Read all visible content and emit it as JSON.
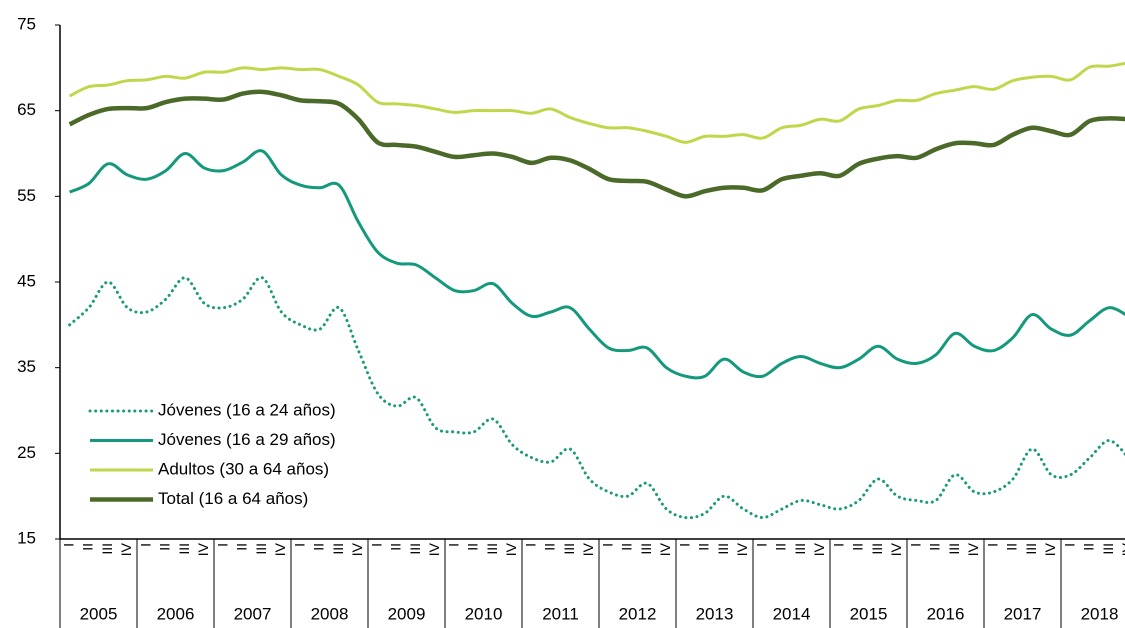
{
  "chart_data": {
    "type": "line",
    "categories": [
      "I",
      "II",
      "III",
      "IV",
      "I",
      "II",
      "III",
      "IV",
      "I",
      "II",
      "III",
      "IV",
      "I",
      "II",
      "III",
      "IV",
      "I",
      "II",
      "III",
      "IV",
      "I",
      "II",
      "III",
      "IV",
      "I",
      "II",
      "III",
      "IV",
      "I",
      "II",
      "III",
      "IV",
      "I",
      "II",
      "III",
      "IV",
      "I",
      "II",
      "III",
      "IV",
      "I",
      "II",
      "III",
      "IV",
      "I",
      "II",
      "III",
      "IV",
      "I",
      "II",
      "III",
      "IV",
      "I",
      "II",
      "III",
      "IV"
    ],
    "years": [
      "2005",
      "2006",
      "2007",
      "2008",
      "2009",
      "2010",
      "2011",
      "2012",
      "2013",
      "2014",
      "2015",
      "2016",
      "2017",
      "2018"
    ],
    "ylim": [
      15,
      75
    ],
    "yticks": [
      15,
      25,
      35,
      45,
      55,
      65,
      75
    ],
    "legend": "lower left",
    "series": [
      {
        "name": "Jóvenes (16 a 24 años)",
        "color": "#1a9a7a",
        "style": "dotted",
        "values": [
          40,
          42,
          45,
          42,
          41.5,
          43,
          45.5,
          42.5,
          42,
          43,
          45.5,
          41.5,
          40,
          39.5,
          42,
          37,
          32,
          30.5,
          31.5,
          28,
          27.5,
          27.5,
          29,
          26,
          24.5,
          24,
          25.5,
          22,
          20.5,
          20,
          21.5,
          18.5,
          17.5,
          18,
          20,
          18.5,
          17.5,
          18.5,
          19.5,
          19,
          18.5,
          19.5,
          22,
          20,
          19.5,
          19.5,
          22.5,
          20.5,
          20.5,
          22,
          25.5,
          22.5,
          22.5,
          24.5,
          26.5,
          24.5
        ]
      },
      {
        "name": "Jóvenes (16 a 29 años)",
        "color": "#14997c",
        "style": "solid",
        "values": [
          55.5,
          56.5,
          58.8,
          57.5,
          57,
          58,
          60,
          58.3,
          58,
          59,
          60.3,
          57.5,
          56.3,
          56,
          56.3,
          52,
          48.5,
          47.2,
          47,
          45.5,
          44,
          44,
          44.8,
          42.5,
          41,
          41.5,
          42,
          39.5,
          37.3,
          37,
          37.3,
          35,
          34,
          34,
          36,
          34.5,
          34,
          35.5,
          36.3,
          35.5,
          35,
          36,
          37.5,
          36,
          35.5,
          36.5,
          39,
          37.5,
          37,
          38.5,
          41.2,
          39.5,
          38.8,
          40.5,
          42,
          41
        ]
      },
      {
        "name": "Adultos (30 a 64 años)",
        "color": "#c2d64c",
        "style": "solid",
        "values": [
          66.7,
          67.8,
          68,
          68.5,
          68.6,
          69,
          68.8,
          69.5,
          69.5,
          70,
          69.8,
          70,
          69.8,
          69.8,
          69,
          68,
          66,
          65.8,
          65.6,
          65.2,
          64.8,
          65,
          65,
          65,
          64.7,
          65.2,
          64.2,
          63.5,
          63,
          63,
          62.6,
          62,
          61.3,
          62,
          62,
          62.2,
          61.8,
          63,
          63.3,
          64,
          63.8,
          65.2,
          65.6,
          66.2,
          66.2,
          67,
          67.4,
          67.8,
          67.5,
          68.5,
          68.9,
          69,
          68.6,
          70.1,
          70.2,
          70.6
        ]
      },
      {
        "name": "Total (16 a 64 años)",
        "color": "#4b6a2a",
        "style": "solid",
        "values": [
          63.4,
          64.5,
          65.2,
          65.3,
          65.3,
          66,
          66.4,
          66.4,
          66.3,
          67,
          67.2,
          66.8,
          66.2,
          66.1,
          65.8,
          64,
          61.3,
          61,
          60.8,
          60.2,
          59.6,
          59.8,
          60,
          59.6,
          58.9,
          59.5,
          59.2,
          58.2,
          57,
          56.8,
          56.7,
          55.8,
          55,
          55.6,
          56,
          56,
          55.7,
          57,
          57.4,
          57.7,
          57.4,
          58.8,
          59.4,
          59.7,
          59.5,
          60.5,
          61.2,
          61.2,
          61,
          62.2,
          63,
          62.6,
          62.2,
          63.8,
          64.1,
          64
        ]
      }
    ]
  }
}
